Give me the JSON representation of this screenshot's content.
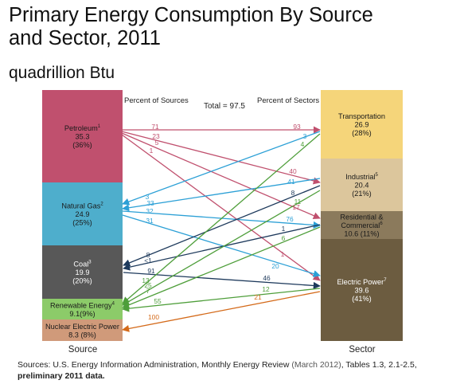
{
  "title_line1": "Primary Energy Consumption By Source",
  "title_line2": "and Sector, 2011",
  "units": "quadrillion Btu",
  "header_sources": "Percent of Sources",
  "header_total": "Total = 97.5",
  "header_sectors": "Percent of Sectors",
  "footer_source": "Source",
  "footer_sector": "Sector",
  "sources": [
    {
      "name": "Petroleum",
      "sup": "1",
      "value": "35.3",
      "pct": "(36%)",
      "color": "#c0506e"
    },
    {
      "name": "Natural Gas",
      "sup": "2",
      "value": "24.9",
      "pct": "(25%)",
      "color": "#4eaecc"
    },
    {
      "name": "Coal",
      "sup": "3",
      "value": "19.9",
      "pct": "(20%)",
      "color": "#585858"
    },
    {
      "name": "Renewable Energy",
      "sup": "4",
      "value": "9.1(9%)",
      "pct": "",
      "color": "#8ccb69"
    },
    {
      "name": "Nuclear Electric Power",
      "sup": "",
      "value": "8.3 (8%)",
      "pct": "",
      "color": "#d09a7a"
    }
  ],
  "sectors": [
    {
      "name": "Transportation",
      "sup": "",
      "value": "26.9",
      "pct": "(28%)",
      "color": "#f5d57a"
    },
    {
      "name": "Industrial",
      "sup": "5",
      "value": "20.4",
      "pct": "(21%)",
      "color": "#dcc69c"
    },
    {
      "name": "Residential & Commercial",
      "sup": "6",
      "value": "10.6 (11%)",
      "pct": "",
      "color": "#8b7a5c"
    },
    {
      "name": "Electric Power",
      "sup": "7",
      "value": "39.6",
      "pct": "(41%)",
      "color": "#6c5c40"
    }
  ],
  "flows": [
    {
      "from": "Petroleum",
      "to": "Transportation",
      "pct_of_source": "71",
      "pct_of_sector": "93",
      "color": "#c0506e"
    },
    {
      "from": "Petroleum",
      "to": "Industrial",
      "pct_of_source": "23",
      "pct_of_sector": "40",
      "color": "#c0506e"
    },
    {
      "from": "Petroleum",
      "to": "Residential & Commercial",
      "pct_of_source": "5",
      "pct_of_sector": "17",
      "color": "#c0506e"
    },
    {
      "from": "Petroleum",
      "to": "Electric Power",
      "pct_of_source": "1",
      "pct_of_sector": "1",
      "color": "#c0506e"
    },
    {
      "from": "Natural Gas",
      "to": "Transportation",
      "pct_of_source": "3",
      "pct_of_sector": "3",
      "color": "#2ca0d6"
    },
    {
      "from": "Natural Gas",
      "to": "Industrial",
      "pct_of_source": "33",
      "pct_of_sector": "41",
      "color": "#2ca0d6"
    },
    {
      "from": "Natural Gas",
      "to": "Residential & Commercial",
      "pct_of_source": "32",
      "pct_of_sector": "76",
      "color": "#2ca0d6"
    },
    {
      "from": "Natural Gas",
      "to": "Electric Power",
      "pct_of_source": "31",
      "pct_of_sector": "20",
      "color": "#2ca0d6"
    },
    {
      "from": "Coal",
      "to": "Industrial",
      "pct_of_source": "8",
      "pct_of_sector": "8",
      "color": "#1e3a5c"
    },
    {
      "from": "Coal",
      "to": "Residential & Commercial",
      "pct_of_source": "<1",
      "pct_of_sector": "1",
      "color": "#1e3a5c"
    },
    {
      "from": "Coal",
      "to": "Electric Power",
      "pct_of_source": "91",
      "pct_of_sector": "46",
      "color": "#1e3a5c"
    },
    {
      "from": "Renewable Energy",
      "to": "Transportation",
      "pct_of_source": "13",
      "pct_of_sector": "4",
      "color": "#4e9e3a"
    },
    {
      "from": "Renewable Energy",
      "to": "Industrial",
      "pct_of_source": "25",
      "pct_of_sector": "11",
      "color": "#4e9e3a"
    },
    {
      "from": "Renewable Energy",
      "to": "Residential & Commercial",
      "pct_of_source": "7",
      "pct_of_sector": "6",
      "color": "#4e9e3a"
    },
    {
      "from": "Renewable Energy",
      "to": "Electric Power",
      "pct_of_source": "55",
      "pct_of_sector": "12",
      "color": "#4e9e3a"
    },
    {
      "from": "Nuclear Electric Power",
      "to": "Electric Power",
      "pct_of_source": "100",
      "pct_of_sector": "21",
      "color": "#d46a1a"
    }
  ],
  "footnote_prefix": "Sources: U.S. Energy Information Administration, Monthly Energy Review",
  "footnote_date": "(March 2012)",
  "footnote_tables": ", Tables 1.3, 2.1-2.5,",
  "footnote_bold": "preliminary 2011 data."
}
